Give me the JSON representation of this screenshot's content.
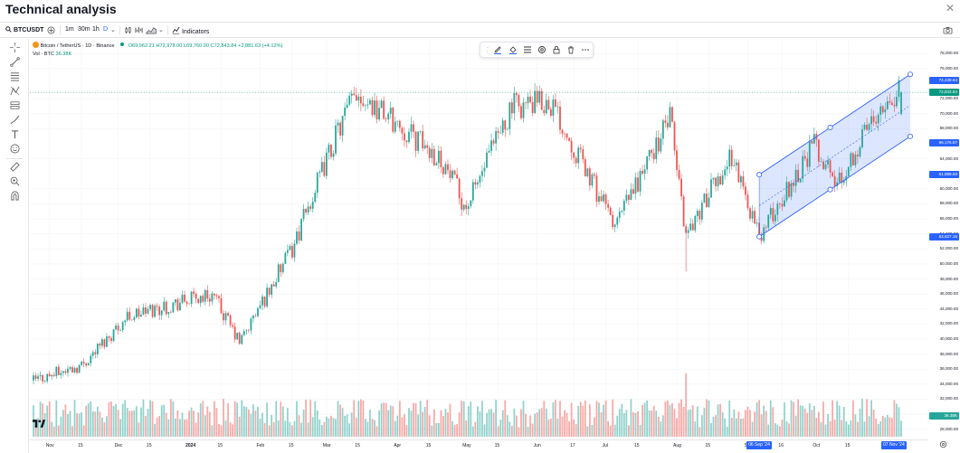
{
  "window": {
    "title": "Technical analysis",
    "close_glyph": "✕"
  },
  "toolbar": {
    "symbol": "BTCUSDT",
    "intervals": [
      "1m",
      "30m",
      "1h",
      "D"
    ],
    "active_interval": "D",
    "indicators_label": "Indicators"
  },
  "legend": {
    "symbol_title": "Bitcoin / TetherUS · 1D · Binance",
    "open": "O69,962.21",
    "high": "H72,978.00",
    "low": "L69,760.00",
    "close": "C72,843.84",
    "change": "+2,881.63 (+4.12%)",
    "volume_label": "Vol · BTC",
    "volume_value": "36.38K"
  },
  "price_axis": {
    "labels": [
      "78,000.00",
      "76,000.00",
      "72,000.00",
      "70,000.00",
      "68,000.00",
      "64,000.00",
      "60,000.00",
      "58,000.00",
      "56,000.00",
      "54,000.00",
      "52,000.00",
      "50,000.00",
      "48,000.00",
      "46,000.00",
      "44,000.00",
      "42,000.00",
      "40,000.00",
      "38,000.00",
      "36,000.00",
      "34,000.00",
      "32,000.00",
      "30,000.00",
      "28,000.00"
    ],
    "highlight_labels": [
      {
        "text": "74,439.64",
        "color": "#2962ff"
      },
      {
        "text": "72,843.84",
        "color": "#089981"
      },
      {
        "text": "66,176.87",
        "color": "#2962ff"
      },
      {
        "text": "61,889.93",
        "color": "#2962ff"
      },
      {
        "text": "53,627.16",
        "color": "#2962ff"
      },
      {
        "text": "36.38K",
        "color": "#26a69a"
      }
    ]
  },
  "time_axis": {
    "labels": [
      "Nov",
      "15",
      "Dec",
      "15",
      "2024",
      "15",
      "Feb",
      "15",
      "Mar",
      "15",
      "Apr",
      "15",
      "May",
      "15",
      "Jun",
      "17",
      "Jul",
      "15",
      "Aug",
      "15",
      "Se",
      "16",
      "Oct",
      "15"
    ],
    "highlight_labels": [
      "06 Sep '24",
      "07 Nov '24"
    ]
  },
  "chart_data": {
    "type": "candlestick",
    "symbol": "Bitcoin / TetherUS",
    "interval": "1D",
    "ylim": [
      27000,
      79000
    ],
    "x_range": [
      "2023-10-25",
      "2024-11-07"
    ],
    "last_close": 72843.84,
    "last_volume": "36.38K",
    "key_points": [
      {
        "date": "2023-10-25",
        "close": 34500
      },
      {
        "date": "2023-11-15",
        "close": 36500
      },
      {
        "date": "2023-12-05",
        "close": 43000
      },
      {
        "date": "2024-01-11",
        "close": 46000
      },
      {
        "date": "2024-01-23",
        "close": 39500
      },
      {
        "date": "2024-02-15",
        "close": 52000
      },
      {
        "date": "2024-03-05",
        "close": 67000
      },
      {
        "date": "2024-03-14",
        "close": 73000
      },
      {
        "date": "2024-04-20",
        "close": 64000
      },
      {
        "date": "2024-05-01",
        "close": 57500
      },
      {
        "date": "2024-05-21",
        "close": 71000
      },
      {
        "date": "2024-06-07",
        "close": 71500
      },
      {
        "date": "2024-07-05",
        "close": 55000
      },
      {
        "date": "2024-07-29",
        "close": 69500
      },
      {
        "date": "2024-08-05",
        "close": 54000
      },
      {
        "date": "2024-08-25",
        "close": 64500
      },
      {
        "date": "2024-09-06",
        "close": 53627.16
      },
      {
        "date": "2024-09-30",
        "close": 66000
      },
      {
        "date": "2024-10-10",
        "close": 60500
      },
      {
        "date": "2024-10-29",
        "close": 71500
      },
      {
        "date": "2024-11-07",
        "close": 72843.84
      }
    ],
    "channel": {
      "start_date": "2024-09-06",
      "end_date": "2024-11-07",
      "upper": [
        61889.93,
        74439.64
      ],
      "lower": [
        53627.16,
        66176.87
      ]
    }
  }
}
